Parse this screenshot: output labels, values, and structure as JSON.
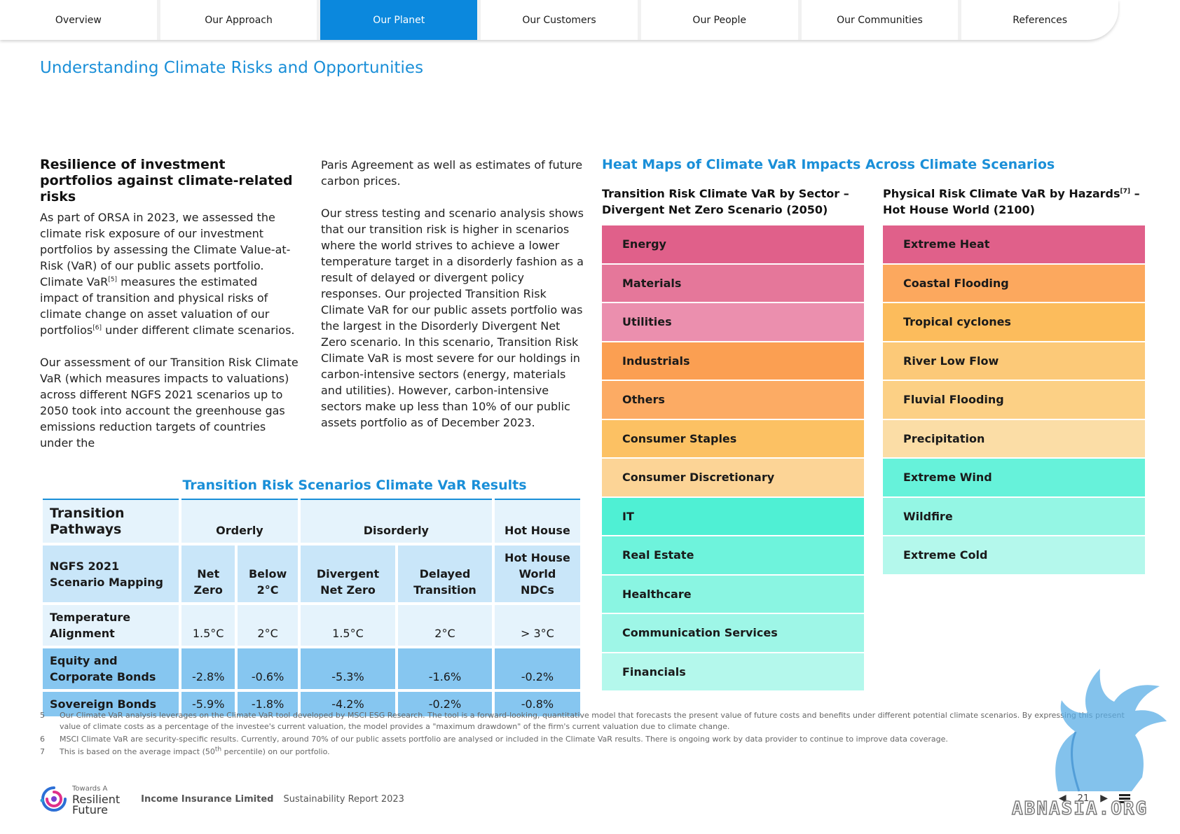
{
  "nav": {
    "tabs": [
      "Overview",
      "Our Approach",
      "Our Planet",
      "Our Customers",
      "Our People",
      "Our Communities",
      "References"
    ],
    "active": "Our Planet"
  },
  "page_title": "Understanding Climate Risks and Opportunities",
  "column1": {
    "heading": "Resilience of investment portfolios against climate-related risks",
    "p1_a": "As part of ORSA in 2023, we assessed the climate risk exposure of our investment portfolios by assessing the Climate Value-at-Risk (VaR) of our public assets portfolio. Climate VaR",
    "p1_sup1": "[5]",
    "p1_b": " measures the estimated impact of transition and physical risks of climate change on asset valuation of our portfolios",
    "p1_sup2": "[6]",
    "p1_c": " under different climate scenarios.",
    "p2": "Our assessment of our Transition Risk Climate VaR (which measures impacts to valuations) across different NGFS 2021 scenarios up to 2050 took into account the greenhouse gas emissions reduction targets of countries under the"
  },
  "column2": {
    "p1": "Paris Agreement as well as estimates of future carbon prices.",
    "p2": "Our stress testing and scenario analysis shows that our transition risk is higher in scenarios where the world strives to achieve a lower temperature target in a disorderly fashion as a result of delayed or divergent policy responses. Our projected Transition Risk Climate VaR for our public assets portfolio was the largest in the Disorderly Divergent Net Zero scenario. In this scenario, Transition Risk Climate VaR is most severe for our holdings in carbon-intensive sectors (energy, materials and utilities). However, carbon-intensive sectors make up less than 10% of our public assets portfolio as of December 2023."
  },
  "heatmaps": {
    "title": "Heat Maps of Climate VaR Impacts Across Climate Scenarios",
    "transition": {
      "title_line1": "Transition Risk Climate VaR by Sector –",
      "title_line2": "Divergent Net Zero Scenario (2050)",
      "sectors": [
        {
          "label": "Energy",
          "color": "#e0608a"
        },
        {
          "label": "Materials",
          "color": "#e5779a"
        },
        {
          "label": "Utilities",
          "color": "#eb8fae"
        },
        {
          "label": "Industrials",
          "color": "#fb9f52"
        },
        {
          "label": "Others",
          "color": "#fcab64"
        },
        {
          "label": "Consumer Staples",
          "color": "#fcc163"
        },
        {
          "label": "Consumer Discretionary",
          "color": "#fcd496"
        },
        {
          "label": "IT",
          "color": "#4ff0d4"
        },
        {
          "label": "Real Estate",
          "color": "#6ef3dc"
        },
        {
          "label": "Healthcare",
          "color": "#8af5e2"
        },
        {
          "label": "Communication Services",
          "color": "#9ef6e7"
        },
        {
          "label": "Financials",
          "color": "#b4f8ec"
        }
      ]
    },
    "physical": {
      "title_line1": "Physical Risk Climate VaR by Hazards",
      "title_sup": "[7]",
      "title_line1_end": " –",
      "title_line2": "Hot House World (2100)",
      "hazards": [
        {
          "label": "Extreme Heat",
          "color": "#e0608a"
        },
        {
          "label": "Coastal Flooding",
          "color": "#fca85e"
        },
        {
          "label": "Tropical cyclones",
          "color": "#fcbc5c"
        },
        {
          "label": "River Low Flow",
          "color": "#fcc978"
        },
        {
          "label": "Fluvial Flooding",
          "color": "#fcd085"
        },
        {
          "label": "Precipitation",
          "color": "#fbdda6"
        },
        {
          "label": "Extreme Wind",
          "color": "#66f2da"
        },
        {
          "label": "Wildfire",
          "color": "#94f6e4"
        },
        {
          "label": "Extreme Cold",
          "color": "#b4f8ec"
        }
      ]
    }
  },
  "scenario_table": {
    "title": "Transition Risk Scenarios Climate VaR Results",
    "pathways_label": "Transition Pathways",
    "pathways": [
      "Orderly",
      "Disorderly",
      "Hot House"
    ],
    "mapping_label": "NGFS 2021 Scenario Mapping",
    "scenarios": [
      "Net Zero",
      "Below 2°C",
      "Divergent Net Zero",
      "Delayed Transition",
      "Hot House World NDCs"
    ],
    "temperature_label": "Temperature Alignment",
    "temperature": [
      "1.5°C",
      "2°C",
      "1.5°C",
      "2°C",
      "> 3°C"
    ],
    "equity_label": "Equity and Corporate Bonds",
    "equity": [
      "-2.8%",
      "-0.6%",
      "-5.3%",
      "-1.6%",
      "-0.2%"
    ],
    "sovereign_label": "Sovereign Bonds",
    "sovereign": [
      "-5.9%",
      "-1.8%",
      "-4.2%",
      "-0.2%",
      "-0.8%"
    ]
  },
  "footnotes": [
    {
      "num": "5",
      "text": "Our Climate VaR analysis leverages on the Climate VaR tool developed by MSCI ESG Research. The tool is a forward-looking, quantitative model that forecasts the present value of future costs and benefits under different potential climate scenarios. By expressing this present value of climate costs as a percentage of the investee's current valuation, the model provides a \"maximum drawdown\" of the firm's current valuation due to climate change."
    },
    {
      "num": "6",
      "text": "MSCI Climate VaR are security-specific results. Currently, around 70% of our public assets portfolio are analysed or included in the Climate VaR results. There is ongoing work by data provider to continue to improve data coverage."
    },
    {
      "num": "7",
      "text_a": "This is based on the average impact (50",
      "text_sup": "th",
      "text_b": " percentile) on our portfolio."
    }
  ],
  "footer": {
    "logo_small": "Towards A",
    "logo_line1": "Resilient",
    "logo_line2": "Future",
    "company": "Income Insurance Limited",
    "report": "Sustainability Report 2023",
    "page": "21"
  },
  "watermark": "ABNASIA.ORG"
}
